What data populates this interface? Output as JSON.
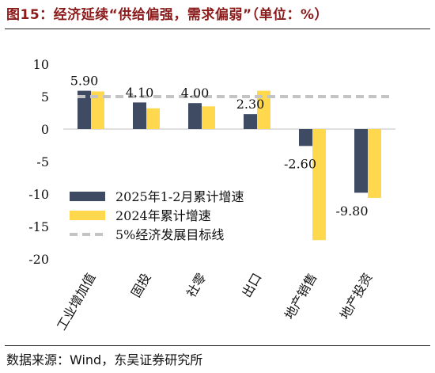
{
  "figure_title": "图15：经济延续“供给偏强，需求偏弱”（单位：%）",
  "source_note": "数据来源：Wind，东吴证券研究所",
  "colors": {
    "series_2025": "#3f4a63",
    "series_2024": "#ffd84d",
    "target_line": "#c4c4c4",
    "title_red": "#8b1a1a"
  },
  "chart_data": {
    "type": "bar",
    "categories": [
      "工业增加值",
      "固投",
      "社零",
      "出口",
      "地产销售",
      "地产投资"
    ],
    "series": [
      {
        "name": "2025年1-2月累计增速",
        "values": [
          5.9,
          4.1,
          4.0,
          2.3,
          -2.6,
          -9.8
        ]
      },
      {
        "name": "2024年累计增速",
        "values": [
          5.8,
          3.2,
          3.5,
          5.9,
          -17.1,
          -10.6
        ]
      }
    ],
    "reference_line": {
      "name": "5%经济发展目标线",
      "value": 5
    },
    "data_labels": [
      "5.90",
      "4.10",
      "4.00",
      "2.30",
      "-2.60",
      "-9.80"
    ],
    "y_ticks": [
      10,
      5,
      0,
      -5,
      -10,
      -15,
      -20
    ],
    "ylim": [
      -20,
      10
    ],
    "grid": false,
    "legend_position": "lower-left",
    "xlabel": "",
    "ylabel": ""
  }
}
